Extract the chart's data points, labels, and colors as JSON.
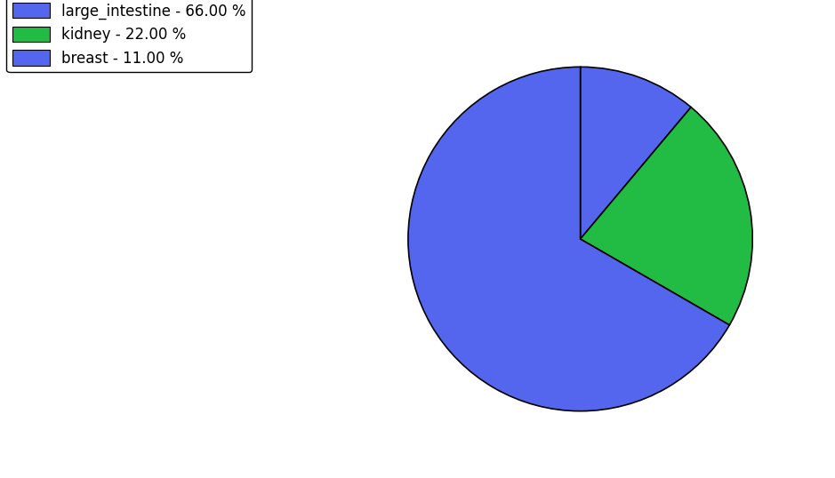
{
  "labels": [
    "breast",
    "kidney",
    "large_intestine"
  ],
  "values": [
    11.0,
    22.0,
    66.0
  ],
  "colors": [
    "#5566ee",
    "#22bb44",
    "#5566ee"
  ],
  "legend_labels": [
    "large_intestine - 66.00 %",
    "kidney - 22.00 %",
    "breast - 11.00 %"
  ],
  "legend_colors": [
    "#5566ee",
    "#22bb44",
    "#5566ee"
  ],
  "startangle": 90,
  "background_color": "#ffffff",
  "figsize": [
    9.39,
    5.38
  ],
  "dpi": 100
}
